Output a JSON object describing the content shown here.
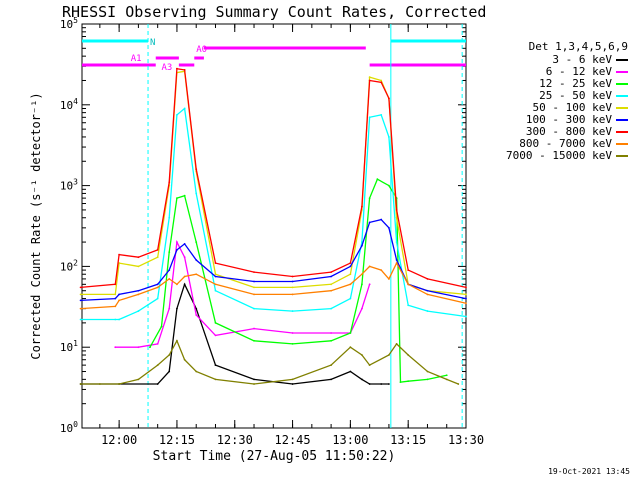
{
  "chart_data": {
    "type": "line",
    "title": "RHESSI Observing Summary Count Rates, Corrected",
    "xlabel": "Start Time (27-Aug-05 11:50:22)",
    "ylabel": "Corrected Count Rate (s⁻¹ detector⁻¹)",
    "yscale": "log",
    "ylim": [
      1,
      100000
    ],
    "xlim": [
      "11:50:22",
      "13:30:00"
    ],
    "xticks": [
      "12:00",
      "12:15",
      "12:30",
      "12:45",
      "13:00",
      "13:15",
      "13:30"
    ],
    "yticks": [
      "10^0",
      "10^1",
      "10^2",
      "10^3",
      "10^4",
      "10^5"
    ],
    "legend_title": "Det 1,3,4,5,6,9",
    "legend_position": "right",
    "series": [
      {
        "name": "3 - 6 keV",
        "color": "#000000",
        "x": [
          "11:50",
          "12:00",
          "12:10",
          "12:13",
          "12:15",
          "12:17",
          "12:20",
          "12:25",
          "12:35",
          "12:45",
          "12:55",
          "13:00",
          "13:03",
          "13:05",
          "13:08",
          "13:10"
        ],
        "values": [
          3.5,
          3.5,
          3.5,
          5,
          30,
          60,
          30,
          6,
          4,
          3.5,
          4,
          5,
          4,
          3.5,
          3.5,
          3.5
        ]
      },
      {
        "name": "6 - 12 keV",
        "color": "#ff00ff",
        "x": [
          "11:59",
          "12:05",
          "12:10",
          "12:13",
          "12:15",
          "12:17",
          "12:20",
          "12:25",
          "12:35",
          "12:45",
          "12:55",
          "13:00",
          "13:03",
          "13:05"
        ],
        "values": [
          10,
          10,
          11,
          30,
          200,
          130,
          25,
          14,
          17,
          15,
          15,
          15,
          30,
          60
        ]
      },
      {
        "name": "12 - 25 keV",
        "color": "#00ff00",
        "x": [
          "12:08",
          "12:11",
          "12:13",
          "12:15",
          "12:17",
          "12:20",
          "12:25",
          "12:35",
          "12:45",
          "12:55",
          "13:00",
          "13:03",
          "13:05",
          "13:07",
          "13:10",
          "13:12",
          "13:13",
          "13:15",
          "13:20",
          "13:25"
        ],
        "values": [
          10,
          18,
          150,
          700,
          750,
          200,
          20,
          12,
          11,
          12,
          15,
          60,
          700,
          1200,
          1000,
          700,
          3.7,
          3.8,
          4,
          4.5
        ]
      },
      {
        "name": "25 - 50 keV",
        "color": "#00ffff",
        "x": [
          "11:50",
          "11:59",
          "12:00",
          "12:05",
          "12:10",
          "12:13",
          "12:15",
          "12:17",
          "12:20",
          "12:25",
          "12:35",
          "12:45",
          "12:55",
          "13:00",
          "13:03",
          "13:05",
          "13:08",
          "13:10",
          "13:12",
          "13:15",
          "13:20",
          "13:30"
        ],
        "values": [
          22,
          22,
          22,
          28,
          40,
          400,
          7500,
          9000,
          800,
          50,
          30,
          28,
          30,
          40,
          200,
          7000,
          7500,
          4000,
          200,
          33,
          28,
          24
        ]
      },
      {
        "name": "50 - 100 keV",
        "color": "#dddd00",
        "x": [
          "11:50",
          "11:59",
          "12:00",
          "12:05",
          "12:10",
          "12:13",
          "12:15",
          "12:17",
          "12:20",
          "12:25",
          "12:35",
          "12:45",
          "12:55",
          "13:00",
          "13:03",
          "13:05",
          "13:08",
          "13:10",
          "13:12",
          "13:15",
          "13:20",
          "13:30"
        ],
        "values": [
          45,
          45,
          110,
          100,
          130,
          1000,
          25000,
          26000,
          1500,
          80,
          55,
          55,
          60,
          80,
          500,
          22000,
          20000,
          12000,
          400,
          60,
          50,
          45
        ]
      },
      {
        "name": "100 - 300 keV",
        "color": "#0000ff",
        "x": [
          "11:50",
          "11:59",
          "12:00",
          "12:05",
          "12:10",
          "12:13",
          "12:15",
          "12:17",
          "12:20",
          "12:25",
          "12:35",
          "12:45",
          "12:55",
          "13:00",
          "13:03",
          "13:05",
          "13:08",
          "13:10",
          "13:12",
          "13:15",
          "13:20",
          "13:30"
        ],
        "values": [
          38,
          40,
          45,
          50,
          60,
          90,
          160,
          190,
          120,
          75,
          65,
          65,
          75,
          100,
          180,
          350,
          380,
          300,
          120,
          60,
          50,
          40
        ]
      },
      {
        "name": "300 - 800 keV",
        "color": "#ff0000",
        "x": [
          "11:50",
          "11:59",
          "12:00",
          "12:05",
          "12:10",
          "12:13",
          "12:15",
          "12:17",
          "12:20",
          "12:25",
          "12:35",
          "12:45",
          "12:55",
          "13:00",
          "13:03",
          "13:05",
          "13:08",
          "13:10",
          "13:12",
          "13:15",
          "13:20",
          "13:30"
        ],
        "values": [
          55,
          60,
          140,
          130,
          160,
          1100,
          28000,
          27000,
          1600,
          110,
          85,
          75,
          85,
          110,
          550,
          20000,
          19000,
          12000,
          500,
          90,
          70,
          55
        ]
      },
      {
        "name": "800 - 7000 keV",
        "color": "#ff8000",
        "x": [
          "11:50",
          "11:59",
          "12:00",
          "12:05",
          "12:10",
          "12:13",
          "12:15",
          "12:17",
          "12:20",
          "12:25",
          "12:35",
          "12:45",
          "12:55",
          "13:00",
          "13:03",
          "13:05",
          "13:08",
          "13:10",
          "13:12",
          "13:15",
          "13:20",
          "13:30"
        ],
        "values": [
          30,
          32,
          38,
          45,
          55,
          70,
          60,
          75,
          80,
          60,
          45,
          45,
          50,
          60,
          80,
          100,
          90,
          70,
          110,
          60,
          45,
          35
        ]
      },
      {
        "name": "7000 - 15000 keV",
        "color": "#808000",
        "x": [
          "11:50",
          "11:55",
          "12:00",
          "12:05",
          "12:10",
          "12:13",
          "12:15",
          "12:17",
          "12:20",
          "12:25",
          "12:35",
          "12:45",
          "12:55",
          "13:00",
          "13:03",
          "13:05",
          "13:10",
          "13:12",
          "13:15",
          "13:20",
          "13:25",
          "13:28"
        ],
        "values": [
          3.5,
          3.5,
          3.5,
          4,
          6,
          8,
          12,
          7,
          5,
          4,
          3.5,
          4,
          6,
          10,
          8,
          6,
          8,
          11,
          8,
          5,
          4,
          3.5
        ]
      }
    ],
    "annotations": {
      "attenuator_labels": [
        "A1",
        "A3",
        "A0"
      ],
      "night_label": "N",
      "timestamp": "19-Oct-2021 13:45"
    }
  }
}
